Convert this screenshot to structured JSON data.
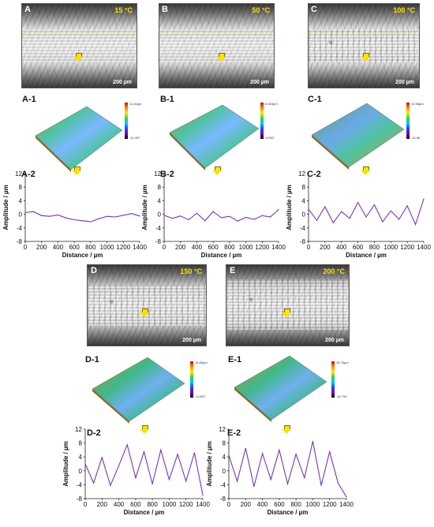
{
  "panels": {
    "A": {
      "letter": "A",
      "temp": "15 °C",
      "scale": "200 µm",
      "surf_label": "A-1",
      "plot_label": "A-2"
    },
    "B": {
      "letter": "B",
      "temp": "50 °C",
      "scale": "200 µm",
      "surf_label": "B-1",
      "plot_label": "B-2"
    },
    "C": {
      "letter": "C",
      "temp": "100 °C",
      "scale": "200 µm",
      "surf_label": "C-1",
      "plot_label": "C-2"
    },
    "D": {
      "letter": "D",
      "temp": "150 °C",
      "scale": "200 µm",
      "surf_label": "D-1",
      "plot_label": "D-2"
    },
    "E": {
      "letter": "E",
      "temp": "200 °C",
      "scale": "200 µm",
      "surf_label": "E-1",
      "plot_label": "E-2"
    }
  },
  "colorbars": {
    "A": {
      "top": "11.40µm",
      "bottom": "-11.407"
    },
    "B": {
      "top": "8.503µm",
      "bottom": "-8.503"
    },
    "C": {
      "top": "12.58µm",
      "bottom": "-12.58"
    },
    "D": {
      "top": "14.80µm",
      "bottom": "-14.807"
    },
    "E": {
      "top": "16.75µm",
      "bottom": "-16.753"
    }
  },
  "axis_text": {
    "xlabel": "Distance / µm",
    "ylabel": "Amplitude / µm"
  },
  "colors": {
    "profile": "#7a35b0",
    "arrow": "#f5e400",
    "temp_text": "#ffe000"
  },
  "chart_data": [
    {
      "type": "line",
      "xlabel": "Distance / µm",
      "ylabel": "Amplitude / µm",
      "xlim": [
        0,
        1400
      ],
      "ylim": [
        -8,
        12
      ],
      "xticks": [
        0,
        200,
        400,
        600,
        800,
        1000,
        1200,
        1400
      ],
      "yticks": [
        -8,
        -4,
        0,
        4,
        8,
        12
      ],
      "x": [
        0,
        100,
        200,
        300,
        400,
        500,
        600,
        700,
        800,
        900,
        1000,
        1100,
        1200,
        1300,
        1400
      ],
      "values": [
        0.5,
        0.8,
        -0.4,
        -0.6,
        -0.2,
        -1.1,
        -1.6,
        -1.9,
        -2.2,
        -1.3,
        -0.6,
        -0.8,
        -0.3,
        0.2,
        -0.5
      ]
    },
    {
      "type": "line",
      "xlabel": "Distance / µm",
      "ylabel": "Amplitude / µm",
      "xlim": [
        0,
        1400
      ],
      "ylim": [
        -8,
        12
      ],
      "xticks": [
        0,
        200,
        400,
        600,
        800,
        1000,
        1200,
        1400
      ],
      "yticks": [
        -8,
        -4,
        0,
        4,
        8,
        12
      ],
      "x": [
        0,
        100,
        200,
        300,
        400,
        500,
        600,
        700,
        800,
        900,
        1000,
        1100,
        1200,
        1300,
        1400
      ],
      "values": [
        -0.3,
        -1.2,
        -0.5,
        -1.6,
        0.3,
        -1.9,
        0.8,
        -1.0,
        -0.6,
        -2.0,
        -0.9,
        -1.5,
        -0.4,
        -0.8,
        1.4
      ]
    },
    {
      "type": "line",
      "xlabel": "Distance / µm",
      "ylabel": "Amplitude / µm",
      "xlim": [
        0,
        1400
      ],
      "ylim": [
        -8,
        12
      ],
      "xticks": [
        0,
        200,
        400,
        600,
        800,
        1000,
        1200,
        1400
      ],
      "yticks": [
        -8,
        -4,
        0,
        4,
        8,
        12
      ],
      "x": [
        0,
        100,
        200,
        300,
        400,
        500,
        600,
        700,
        800,
        900,
        1000,
        1100,
        1200,
        1300,
        1400
      ],
      "values": [
        1.5,
        -1.8,
        2.2,
        -2.5,
        0.8,
        -1.2,
        3.5,
        -0.8,
        2.8,
        -2.2,
        1.0,
        -1.5,
        2.5,
        -3.0,
        4.5
      ]
    },
    {
      "type": "line",
      "xlabel": "Distance / µm",
      "ylabel": "Amplitude / µm",
      "xlim": [
        0,
        1400
      ],
      "ylim": [
        -8,
        12
      ],
      "xticks": [
        0,
        200,
        400,
        600,
        800,
        1000,
        1200,
        1400
      ],
      "yticks": [
        -8,
        -4,
        0,
        4,
        8,
        12
      ],
      "x": [
        0,
        100,
        200,
        300,
        400,
        500,
        600,
        700,
        800,
        900,
        1000,
        1100,
        1200,
        1300,
        1400
      ],
      "values": [
        2.0,
        -3.5,
        3.8,
        -4.2,
        1.5,
        7.5,
        -2.0,
        5.5,
        -3.8,
        6.0,
        -2.5,
        4.8,
        -3.0,
        5.2,
        -7.0
      ]
    },
    {
      "type": "line",
      "xlabel": "Distance / µm",
      "ylabel": "Amplitude / µm",
      "xlim": [
        0,
        1400
      ],
      "ylim": [
        -8,
        12
      ],
      "xticks": [
        0,
        200,
        400,
        600,
        800,
        1000,
        1200,
        1400
      ],
      "yticks": [
        -8,
        -4,
        0,
        4,
        8,
        12
      ],
      "x": [
        0,
        100,
        200,
        300,
        400,
        500,
        600,
        700,
        800,
        900,
        1000,
        1100,
        1200,
        1300,
        1400
      ],
      "values": [
        4.5,
        -3.0,
        6.5,
        -4.5,
        5.0,
        -2.5,
        6.0,
        -3.8,
        4.8,
        -2.0,
        8.5,
        -4.2,
        5.5,
        -3.5,
        -7.5
      ]
    }
  ]
}
